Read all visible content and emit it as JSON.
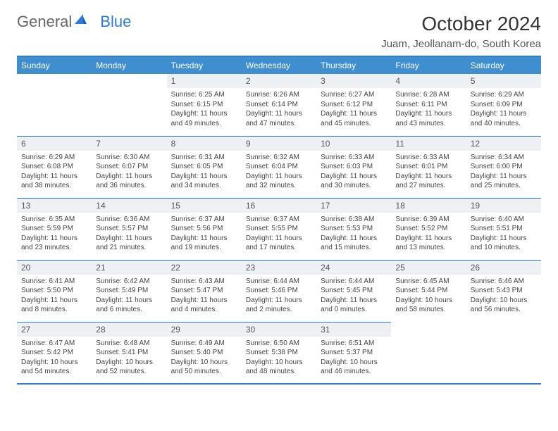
{
  "logo": {
    "text1": "General",
    "text2": "Blue"
  },
  "title": "October 2024",
  "location": "Juam, Jeollanam-do, South Korea",
  "colors": {
    "header_bg": "#3e8ed0",
    "header_border": "#2e7cd6",
    "row_border": "#2e7cd6",
    "daynum_bg": "#eef1f3",
    "text": "#444444",
    "logo_general": "#666666",
    "logo_blue": "#2e7cd6"
  },
  "weekdays": [
    "Sunday",
    "Monday",
    "Tuesday",
    "Wednesday",
    "Thursday",
    "Friday",
    "Saturday"
  ],
  "grid": [
    [
      null,
      null,
      {
        "day": "1",
        "sunrise": "6:25 AM",
        "sunset": "6:15 PM",
        "daylight": "11 hours and 49 minutes."
      },
      {
        "day": "2",
        "sunrise": "6:26 AM",
        "sunset": "6:14 PM",
        "daylight": "11 hours and 47 minutes."
      },
      {
        "day": "3",
        "sunrise": "6:27 AM",
        "sunset": "6:12 PM",
        "daylight": "11 hours and 45 minutes."
      },
      {
        "day": "4",
        "sunrise": "6:28 AM",
        "sunset": "6:11 PM",
        "daylight": "11 hours and 43 minutes."
      },
      {
        "day": "5",
        "sunrise": "6:29 AM",
        "sunset": "6:09 PM",
        "daylight": "11 hours and 40 minutes."
      }
    ],
    [
      {
        "day": "6",
        "sunrise": "6:29 AM",
        "sunset": "6:08 PM",
        "daylight": "11 hours and 38 minutes."
      },
      {
        "day": "7",
        "sunrise": "6:30 AM",
        "sunset": "6:07 PM",
        "daylight": "11 hours and 36 minutes."
      },
      {
        "day": "8",
        "sunrise": "6:31 AM",
        "sunset": "6:05 PM",
        "daylight": "11 hours and 34 minutes."
      },
      {
        "day": "9",
        "sunrise": "6:32 AM",
        "sunset": "6:04 PM",
        "daylight": "11 hours and 32 minutes."
      },
      {
        "day": "10",
        "sunrise": "6:33 AM",
        "sunset": "6:03 PM",
        "daylight": "11 hours and 30 minutes."
      },
      {
        "day": "11",
        "sunrise": "6:33 AM",
        "sunset": "6:01 PM",
        "daylight": "11 hours and 27 minutes."
      },
      {
        "day": "12",
        "sunrise": "6:34 AM",
        "sunset": "6:00 PM",
        "daylight": "11 hours and 25 minutes."
      }
    ],
    [
      {
        "day": "13",
        "sunrise": "6:35 AM",
        "sunset": "5:59 PM",
        "daylight": "11 hours and 23 minutes."
      },
      {
        "day": "14",
        "sunrise": "6:36 AM",
        "sunset": "5:57 PM",
        "daylight": "11 hours and 21 minutes."
      },
      {
        "day": "15",
        "sunrise": "6:37 AM",
        "sunset": "5:56 PM",
        "daylight": "11 hours and 19 minutes."
      },
      {
        "day": "16",
        "sunrise": "6:37 AM",
        "sunset": "5:55 PM",
        "daylight": "11 hours and 17 minutes."
      },
      {
        "day": "17",
        "sunrise": "6:38 AM",
        "sunset": "5:53 PM",
        "daylight": "11 hours and 15 minutes."
      },
      {
        "day": "18",
        "sunrise": "6:39 AM",
        "sunset": "5:52 PM",
        "daylight": "11 hours and 13 minutes."
      },
      {
        "day": "19",
        "sunrise": "6:40 AM",
        "sunset": "5:51 PM",
        "daylight": "11 hours and 10 minutes."
      }
    ],
    [
      {
        "day": "20",
        "sunrise": "6:41 AM",
        "sunset": "5:50 PM",
        "daylight": "11 hours and 8 minutes."
      },
      {
        "day": "21",
        "sunrise": "6:42 AM",
        "sunset": "5:49 PM",
        "daylight": "11 hours and 6 minutes."
      },
      {
        "day": "22",
        "sunrise": "6:43 AM",
        "sunset": "5:47 PM",
        "daylight": "11 hours and 4 minutes."
      },
      {
        "day": "23",
        "sunrise": "6:44 AM",
        "sunset": "5:46 PM",
        "daylight": "11 hours and 2 minutes."
      },
      {
        "day": "24",
        "sunrise": "6:44 AM",
        "sunset": "5:45 PM",
        "daylight": "11 hours and 0 minutes."
      },
      {
        "day": "25",
        "sunrise": "6:45 AM",
        "sunset": "5:44 PM",
        "daylight": "10 hours and 58 minutes."
      },
      {
        "day": "26",
        "sunrise": "6:46 AM",
        "sunset": "5:43 PM",
        "daylight": "10 hours and 56 minutes."
      }
    ],
    [
      {
        "day": "27",
        "sunrise": "6:47 AM",
        "sunset": "5:42 PM",
        "daylight": "10 hours and 54 minutes."
      },
      {
        "day": "28",
        "sunrise": "6:48 AM",
        "sunset": "5:41 PM",
        "daylight": "10 hours and 52 minutes."
      },
      {
        "day": "29",
        "sunrise": "6:49 AM",
        "sunset": "5:40 PM",
        "daylight": "10 hours and 50 minutes."
      },
      {
        "day": "30",
        "sunrise": "6:50 AM",
        "sunset": "5:38 PM",
        "daylight": "10 hours and 48 minutes."
      },
      {
        "day": "31",
        "sunrise": "6:51 AM",
        "sunset": "5:37 PM",
        "daylight": "10 hours and 46 minutes."
      },
      null,
      null
    ]
  ],
  "labels": {
    "sunrise": "Sunrise:",
    "sunset": "Sunset:",
    "daylight": "Daylight:"
  }
}
